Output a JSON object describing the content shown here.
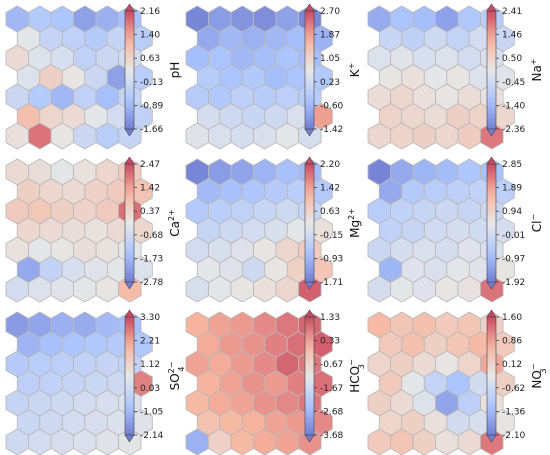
{
  "chart_data": [
    {
      "type": "heatmap",
      "layout": "hexagonal",
      "label": "pH",
      "cmap": "coolwarm",
      "ticks": [
        "2.16",
        "1.40",
        "0.63",
        "-0.13",
        "-0.89",
        "-1.66"
      ],
      "vmin": -1.66,
      "vmax": 2.16,
      "values": [
        [
          -0.9,
          -0.6,
          -0.7,
          -1.2,
          -1.0,
          -0.8
        ],
        [
          0.2,
          -0.3,
          -0.4,
          -0.6,
          -0.3,
          -0.5
        ],
        [
          0.5,
          0.1,
          0.0,
          -0.4,
          -0.2,
          -0.1
        ],
        [
          0.1,
          0.7,
          0.3,
          -0.2,
          -1.2,
          -0.5
        ],
        [
          -0.2,
          -0.6,
          -0.9,
          -0.4,
          -0.8,
          -0.3
        ],
        [
          1.0,
          0.6,
          0.5,
          0.2,
          -0.1,
          -0.4
        ],
        [
          0.4,
          1.8,
          0.3,
          -0.2,
          -0.5,
          -0.3
        ]
      ]
    },
    {
      "type": "heatmap",
      "layout": "hexagonal",
      "label": "K+",
      "cmap": "coolwarm",
      "ticks": [
        "2.70",
        "1.87",
        "1.05",
        "0.23",
        "-0.60",
        "-1.42"
      ],
      "vmin": -1.42,
      "vmax": 2.7,
      "values": [
        [
          -1.3,
          -1.0,
          -1.1,
          -1.2,
          -0.9,
          -1.3
        ],
        [
          -0.8,
          -0.6,
          -0.7,
          -0.6,
          -0.5,
          -0.7
        ],
        [
          -0.5,
          -0.4,
          -0.6,
          -0.5,
          -0.4,
          -0.5
        ],
        [
          -0.2,
          -0.4,
          -0.3,
          -0.5,
          -0.4,
          -0.3
        ],
        [
          -0.2,
          -0.3,
          -0.1,
          -0.2,
          -0.1,
          -0.2
        ],
        [
          0.3,
          0.2,
          0.1,
          0.2,
          0.4,
          1.9
        ],
        [
          0.5,
          0.4,
          0.3,
          0.4,
          0.6,
          0.3
        ]
      ]
    },
    {
      "type": "heatmap",
      "layout": "hexagonal",
      "label": "Na+",
      "cmap": "coolwarm",
      "ticks": [
        "2.41",
        "1.46",
        "0.50",
        "-0.45",
        "-1.40",
        "-2.36"
      ],
      "vmin": -2.36,
      "vmax": 2.41,
      "values": [
        [
          -1.6,
          -1.2,
          -1.3,
          -1.8,
          -1.1,
          -0.9
        ],
        [
          -0.6,
          -0.8,
          -0.5,
          -0.7,
          -0.4,
          -0.6
        ],
        [
          -0.2,
          -0.1,
          -0.3,
          -0.2,
          -0.4,
          -0.3
        ],
        [
          0.1,
          0.2,
          0.0,
          0.1,
          -0.2,
          -0.1
        ],
        [
          0.3,
          0.4,
          0.2,
          0.1,
          0.3,
          0.2
        ],
        [
          0.5,
          0.4,
          0.3,
          0.6,
          0.5,
          0.4
        ],
        [
          0.4,
          0.5,
          0.6,
          0.4,
          0.7,
          1.9
        ]
      ]
    },
    {
      "type": "heatmap",
      "layout": "hexagonal",
      "label": "Ca2+",
      "cmap": "coolwarm",
      "ticks": [
        "2.47",
        "1.42",
        "0.37",
        "-0.68",
        "-1.73",
        "-2.78"
      ],
      "vmin": -2.78,
      "vmax": 2.47,
      "values": [
        [
          0.2,
          0.1,
          -0.2,
          0.0,
          0.3,
          0.6
        ],
        [
          0.5,
          0.3,
          0.2,
          0.4,
          0.6,
          0.8
        ],
        [
          0.6,
          0.7,
          0.5,
          0.4,
          0.6,
          2.0
        ],
        [
          0.3,
          0.2,
          0.1,
          0.0,
          0.2,
          0.3
        ],
        [
          0.0,
          -0.2,
          -0.1,
          0.1,
          0.0,
          -0.2
        ],
        [
          -2.0,
          -1.0,
          -0.5,
          -0.3,
          -0.2,
          -0.4
        ],
        [
          -0.6,
          -0.4,
          -0.3,
          -0.2,
          -0.1,
          1.0
        ]
      ]
    },
    {
      "type": "heatmap",
      "layout": "hexagonal",
      "label": "Mg2+",
      "cmap": "coolwarm",
      "ticks": [
        "2.20",
        "1.42",
        "0.63",
        "-0.15",
        "-0.93",
        "-1.71"
      ],
      "vmin": -1.71,
      "vmax": 2.2,
      "values": [
        [
          -1.6,
          -1.3,
          -1.2,
          -1.0,
          -0.8,
          -0.9
        ],
        [
          -0.9,
          -0.8,
          -0.7,
          -0.6,
          -0.5,
          -0.6
        ],
        [
          -0.6,
          -0.5,
          -0.4,
          -0.3,
          -0.2,
          -0.3
        ],
        [
          -0.3,
          -0.2,
          -0.1,
          0.0,
          0.2,
          0.4
        ],
        [
          -0.1,
          0.0,
          0.1,
          0.3,
          0.6,
          0.8
        ],
        [
          0.2,
          0.1,
          -0.2,
          0.3,
          0.7,
          0.9
        ],
        [
          0.0,
          0.2,
          0.3,
          0.4,
          0.6,
          2.0
        ]
      ]
    },
    {
      "type": "heatmap",
      "layout": "hexagonal",
      "label": "Cl-",
      "cmap": "coolwarm",
      "ticks": [
        "2.85",
        "1.89",
        "0.94",
        "-0.01",
        "-0.97",
        "-1.92"
      ],
      "vmin": -1.92,
      "vmax": 2.85,
      "values": [
        [
          -1.8,
          -1.2,
          -1.0,
          -0.9,
          -0.7,
          -0.8
        ],
        [
          -1.2,
          -0.6,
          -0.5,
          -0.4,
          -0.3,
          -0.4
        ],
        [
          -0.5,
          -0.3,
          -0.2,
          -0.1,
          -0.2,
          -0.1
        ],
        [
          -0.3,
          -0.2,
          0.0,
          0.1,
          0.0,
          0.1
        ],
        [
          -0.1,
          0.1,
          0.2,
          0.1,
          0.3,
          0.2
        ],
        [
          -1.0,
          0.3,
          0.2,
          0.4,
          0.3,
          0.5
        ],
        [
          0.1,
          0.4,
          0.3,
          0.5,
          0.6,
          2.4
        ]
      ]
    },
    {
      "type": "heatmap",
      "layout": "hexagonal",
      "label": "SO4 2-",
      "cmap": "coolwarm",
      "ticks": [
        "3.30",
        "2.21",
        "1.12",
        "0.03",
        "-1.05",
        "-2.14"
      ],
      "vmin": -2.14,
      "vmax": 3.3,
      "values": [
        [
          -1.6,
          -1.4,
          -1.2,
          -1.3,
          -1.0,
          -0.9
        ],
        [
          -1.1,
          -0.9,
          -0.8,
          -0.7,
          -0.6,
          -0.7
        ],
        [
          -0.6,
          -0.5,
          -0.4,
          -0.3,
          -0.2,
          -0.3
        ],
        [
          -0.4,
          -0.3,
          -0.2,
          -0.1,
          0.0,
          2.6
        ],
        [
          -0.2,
          -0.1,
          0.0,
          0.1,
          0.2,
          0.3
        ],
        [
          -0.1,
          0.0,
          0.1,
          0.2,
          0.3,
          0.4
        ],
        [
          0.0,
          0.1,
          0.2,
          0.3,
          0.4,
          0.5
        ]
      ]
    },
    {
      "type": "heatmap",
      "layout": "hexagonal",
      "label": "HCO3-",
      "cmap": "coolwarm",
      "ticks": [
        "1.33",
        "0.33",
        "-0.67",
        "-1.67",
        "-2.68",
        "-3.68"
      ],
      "vmin": -3.68,
      "vmax": 1.33,
      "values": [
        [
          0.1,
          0.3,
          0.4,
          0.6,
          0.8,
          1.0
        ],
        [
          0.2,
          0.4,
          0.5,
          0.7,
          0.9,
          1.1
        ],
        [
          0.3,
          0.2,
          0.4,
          0.6,
          1.0,
          0.8
        ],
        [
          0.1,
          0.3,
          0.5,
          0.4,
          0.7,
          0.9
        ],
        [
          0.0,
          0.2,
          0.3,
          0.5,
          0.6,
          0.8
        ],
        [
          -0.2,
          0.0,
          0.1,
          0.3,
          0.4,
          0.6
        ],
        [
          -2.8,
          -0.6,
          0.0,
          0.2,
          0.3,
          0.5
        ]
      ]
    },
    {
      "type": "heatmap",
      "layout": "hexagonal",
      "label": "NO3-",
      "cmap": "coolwarm",
      "ticks": [
        "1.60",
        "0.86",
        "0.12",
        "-0.62",
        "-1.36",
        "-2.10"
      ],
      "vmin": -2.1,
      "vmax": 1.6,
      "values": [
        [
          0.6,
          0.4,
          0.5,
          0.3,
          0.4,
          0.2
        ],
        [
          0.3,
          0.5,
          0.2,
          0.4,
          0.6,
          0.3
        ],
        [
          0.1,
          0.2,
          0.0,
          -0.2,
          0.1,
          0.8
        ],
        [
          0.3,
          -0.3,
          -0.8,
          -1.2,
          -0.6,
          0.2
        ],
        [
          0.2,
          0.0,
          -0.4,
          -1.6,
          -0.9,
          -0.1
        ],
        [
          0.1,
          0.2,
          -0.1,
          -0.6,
          -0.5,
          -0.2
        ],
        [
          0.3,
          0.4,
          0.2,
          -0.1,
          0.0,
          1.2
        ]
      ]
    }
  ],
  "label_parts": [
    [
      "pH",
      ""
    ],
    [
      "K",
      "+"
    ],
    [
      "Na",
      "+"
    ],
    [
      "Ca",
      "2+"
    ],
    [
      "Mg",
      "2+"
    ],
    [
      "Cl",
      "−"
    ],
    [
      "SO",
      "4",
      "2−"
    ],
    [
      "HCO",
      "3",
      "−"
    ],
    [
      "NO",
      "3",
      "−"
    ]
  ]
}
